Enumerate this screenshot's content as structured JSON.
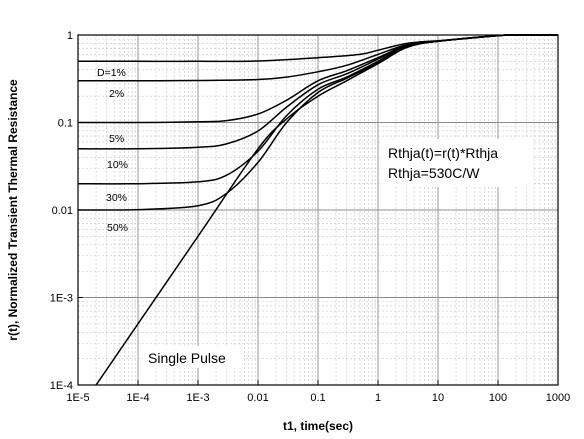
{
  "chart_data": {
    "type": "line",
    "xlabel": "t1, time(sec)",
    "ylabel": "r(t), Normalized Transient Thermal Resistance",
    "x_scale": "log",
    "y_scale": "log",
    "xlim": [
      1e-05,
      1000
    ],
    "ylim": [
      0.0001,
      1
    ],
    "x_ticks": [
      "1E-5",
      "1E-4",
      "1E-3",
      "0.01",
      "0.1",
      "1",
      "10",
      "100",
      "1000"
    ],
    "y_ticks": [
      "1",
      "0.1",
      "0.01",
      "1E-3",
      "1E-4"
    ],
    "grid": true,
    "annotations": [
      "Rthja(t)=r(t)*Rthja",
      "Rthja=530C/W",
      "Single Pulse"
    ],
    "series": [
      {
        "name": "D=1%",
        "x": [
          1e-05,
          0.0001,
          0.001,
          0.01,
          0.1,
          0.5,
          1,
          3,
          10,
          30,
          100,
          200,
          1000
        ],
        "values": [
          0.5,
          0.5,
          0.5,
          0.505,
          0.55,
          0.6,
          0.67,
          0.8,
          0.86,
          0.91,
          0.985,
          1.0,
          1.0
        ]
      },
      {
        "name": "2%",
        "x": [
          1e-05,
          0.0001,
          0.001,
          0.01,
          0.03,
          0.1,
          0.3,
          1,
          3,
          10,
          100,
          200,
          1000
        ],
        "values": [
          0.3,
          0.3,
          0.302,
          0.31,
          0.33,
          0.38,
          0.45,
          0.6,
          0.77,
          0.85,
          0.985,
          1.0,
          1.0
        ]
      },
      {
        "name": "5%",
        "x": [
          1e-05,
          0.0001,
          0.001,
          0.003,
          0.01,
          0.03,
          0.1,
          0.3,
          1,
          3,
          10,
          100,
          200,
          1000
        ],
        "values": [
          0.1,
          0.1,
          0.102,
          0.105,
          0.125,
          0.18,
          0.3,
          0.39,
          0.55,
          0.76,
          0.85,
          0.985,
          1.0,
          1.0
        ]
      },
      {
        "name": "10%",
        "x": [
          1e-05,
          0.0001,
          0.001,
          0.003,
          0.01,
          0.03,
          0.1,
          0.3,
          1,
          3,
          10,
          100,
          200,
          1000
        ],
        "values": [
          0.05,
          0.05,
          0.052,
          0.057,
          0.08,
          0.15,
          0.27,
          0.36,
          0.53,
          0.75,
          0.85,
          0.985,
          1.0,
          1.0
        ]
      },
      {
        "name": "30%",
        "x": [
          1e-05,
          0.0001,
          0.001,
          0.003,
          0.01,
          0.03,
          0.1,
          0.3,
          1,
          3,
          10,
          100,
          200,
          1000
        ],
        "values": [
          0.02,
          0.02,
          0.021,
          0.025,
          0.047,
          0.12,
          0.24,
          0.33,
          0.5,
          0.74,
          0.85,
          0.985,
          1.0,
          1.0
        ]
      },
      {
        "name": "50%",
        "x": [
          1e-05,
          0.0001,
          0.001,
          0.003,
          0.01,
          0.03,
          0.1,
          0.3,
          1,
          3,
          10,
          100,
          200,
          1000
        ],
        "values": [
          0.01,
          0.0101,
          0.0112,
          0.0155,
          0.035,
          0.1,
          0.22,
          0.32,
          0.48,
          0.73,
          0.85,
          0.985,
          1.0,
          1.0
        ]
      },
      {
        "name": "Single Pulse",
        "x": [
          2e-05,
          0.0001,
          0.001,
          0.01,
          0.03,
          0.1,
          0.3,
          1,
          3,
          10,
          100,
          200,
          1000
        ],
        "values": [
          0.0001,
          0.0005,
          0.005,
          0.05,
          0.11,
          0.2,
          0.3,
          0.47,
          0.72,
          0.85,
          0.985,
          1.0,
          1.0
        ]
      }
    ]
  }
}
